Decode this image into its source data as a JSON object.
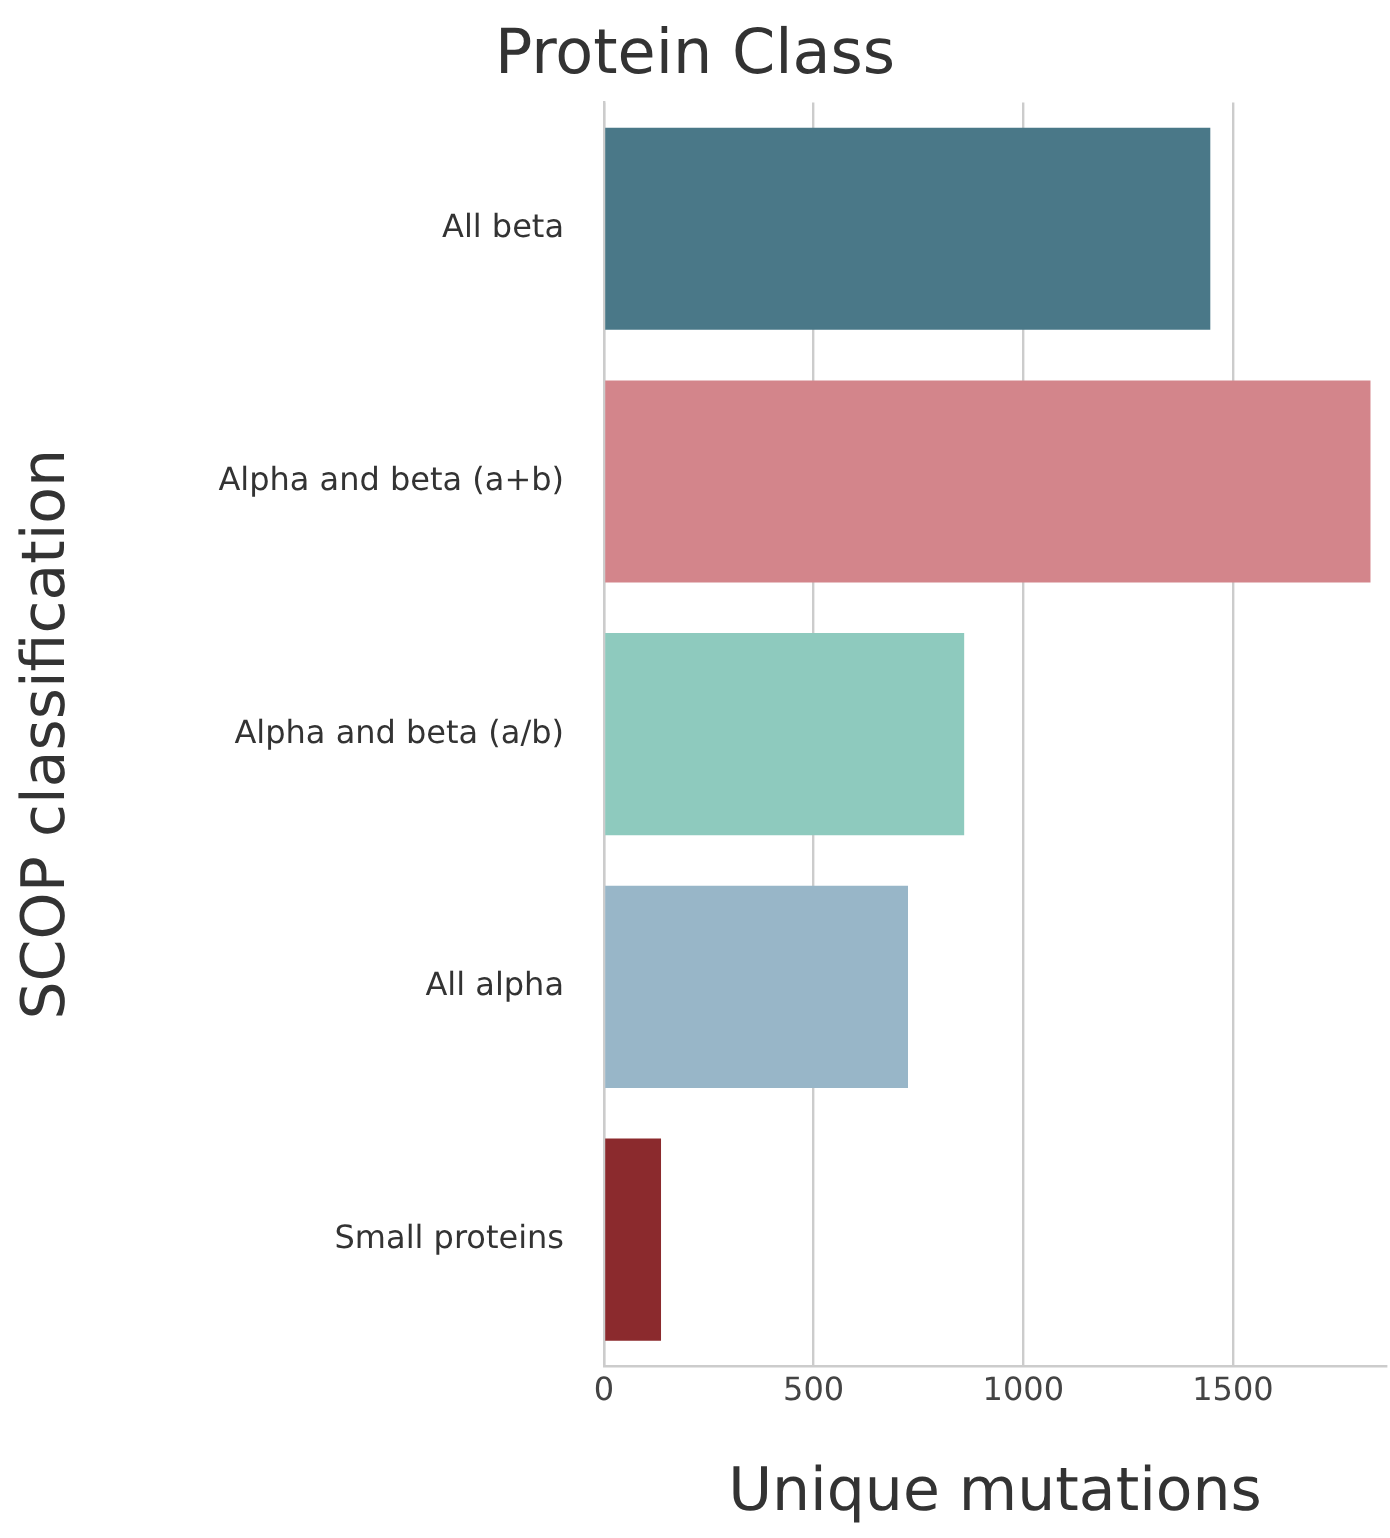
{
  "chart_data": {
    "type": "bar",
    "orientation": "horizontal",
    "title": "Protein Class",
    "xlabel": "Unique mutations",
    "ylabel": "SCOP classification",
    "categories": [
      "All beta",
      "Alpha and beta (a+b)",
      "Alpha and beta (a/b)",
      "All alpha",
      "Small proteins"
    ],
    "values": [
      1446,
      1828,
      859,
      725,
      136
    ],
    "colors": [
      "#4a7888",
      "#d3858b",
      "#8ecabe",
      "#98b6c8",
      "#8b2a2d"
    ],
    "xlim": [
      0,
      1865
    ],
    "xticks": [
      0,
      500,
      1000,
      1500
    ],
    "grid": "x"
  }
}
